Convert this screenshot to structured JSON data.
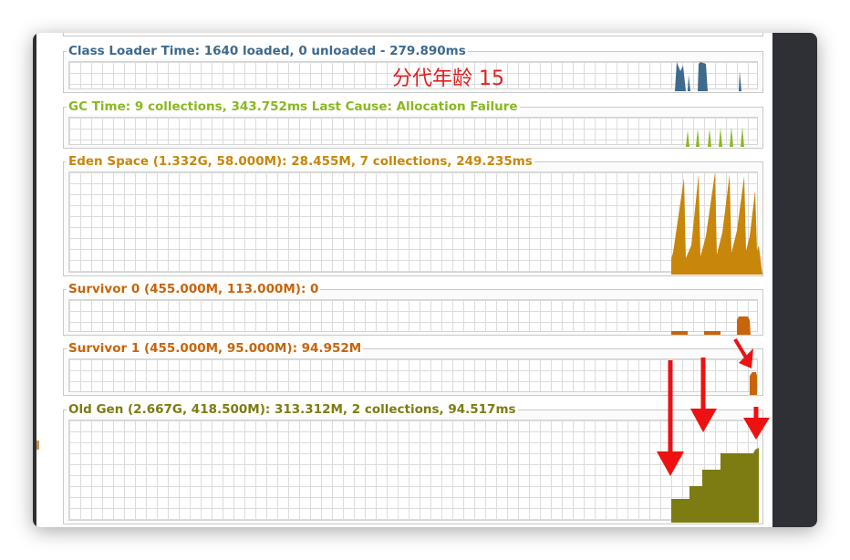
{
  "overlay": {
    "annotation": "分代年龄 15"
  },
  "panels": [
    {
      "title": "Class Loader Time: 1640 loaded, 0 unloaded - 279.890ms",
      "color": "#3e6a8e"
    },
    {
      "title": "GC Time: 9 collections, 343.752ms Last Cause: Allocation Failure",
      "color": "#8ab81e"
    },
    {
      "title": "Eden Space (1.332G, 58.000M): 28.455M, 7 collections, 249.235ms",
      "color": "#c8860a"
    },
    {
      "title": "Survivor 0 (455.000M, 113.000M): 0",
      "color": "#c8640a"
    },
    {
      "title": "Survivor 1 (455.000M, 95.000M): 94.952M",
      "color": "#c8640a"
    },
    {
      "title": "Old Gen (2.667G, 418.500M): 313.312M, 2 collections, 94.517ms",
      "color": "#7c7c12"
    }
  ],
  "colors": {
    "class_loader": "#3e6a8e",
    "gc_time": "#8ab81e",
    "eden": "#c8860a",
    "survivor": "#c8640a",
    "old_gen": "#7c7c12",
    "annotation": "#e02020",
    "window_frame": "#2f3035"
  }
}
